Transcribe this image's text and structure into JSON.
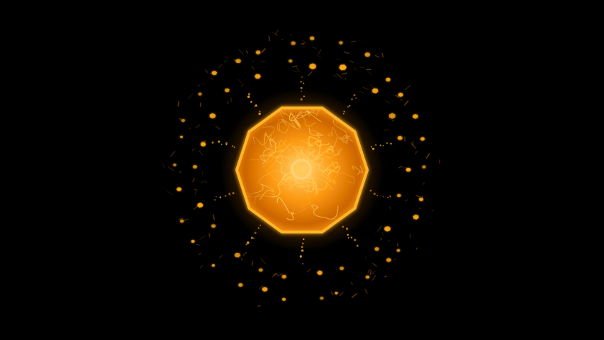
{
  "scene": {
    "background": "#000000",
    "core_color": "#ffb020",
    "core_glow": "#ff8a00",
    "fragment_color": "#ffa818",
    "filament_color": "#ffcc55",
    "core_sides": 10,
    "fragment_ring_count": 2
  }
}
